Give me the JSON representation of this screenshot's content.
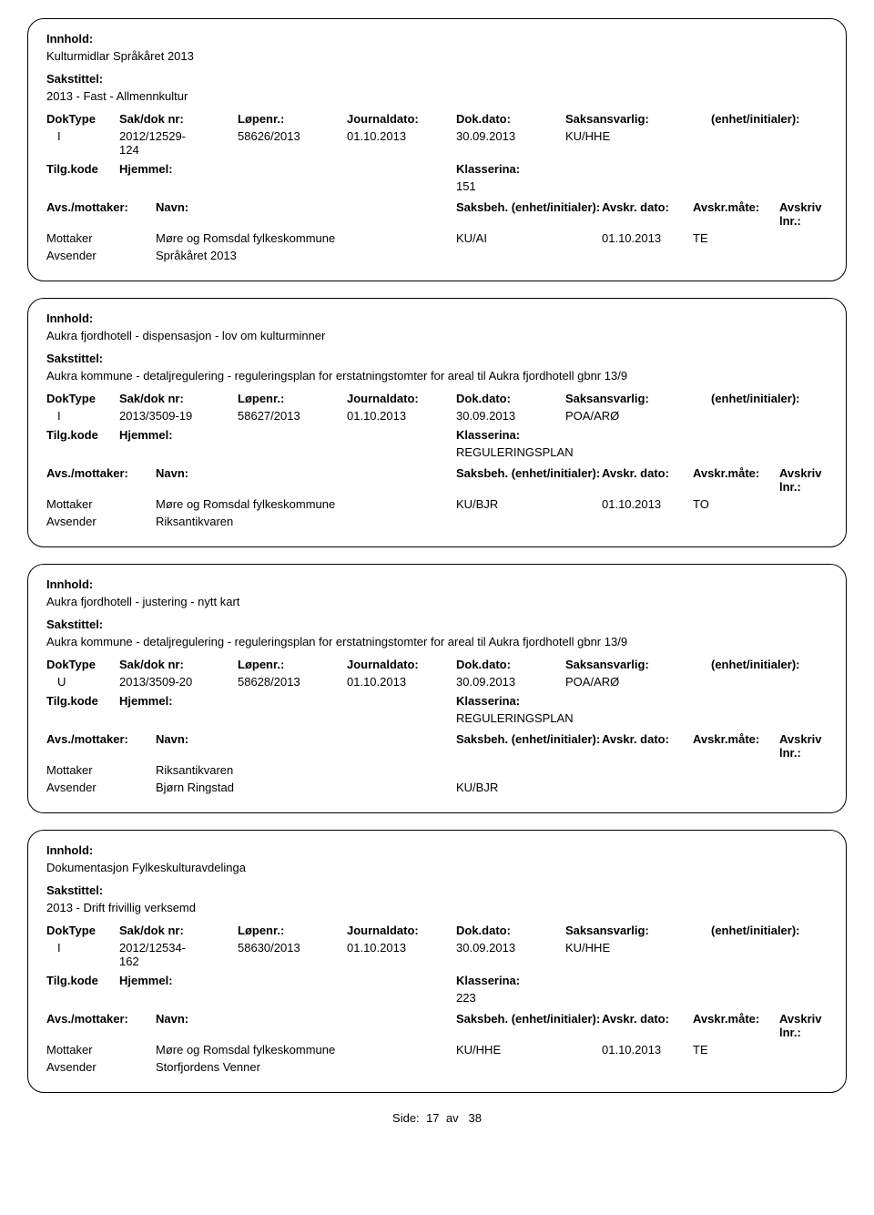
{
  "labels": {
    "innhold": "Innhold:",
    "sakstittel": "Sakstittel:",
    "doktype": "DokType",
    "sakdok": "Sak/dok nr:",
    "lopenr": "Løpenr.:",
    "journaldato": "Journaldato:",
    "dokdato": "Dok.dato:",
    "saksansvarlig": "Saksansvarlig:",
    "enhet": "(enhet/initialer):",
    "tilgkode": "Tilg.kode",
    "hjemmel": "Hjemmel:",
    "klassering": "Klasserina:",
    "avsmot": "Avs./mottaker:",
    "navn": "Navn:",
    "saksbeh": "Saksbeh.",
    "saksbeh_enhet": "(enhet/initialer):",
    "avskrdato": "Avskr. dato:",
    "avskrmaate": "Avskr.måte:",
    "avskrivlnr": "Avskriv lnr.:",
    "mottaker": "Mottaker",
    "avsender": "Avsender"
  },
  "records": [
    {
      "innhold": "Kulturmidlar Språkåret 2013",
      "sakstittel": "2013 - Fast - Allmennkultur",
      "doktype": "I",
      "sakdok": "2012/12529-124",
      "lopenr": "58626/2013",
      "journaldato": "01.10.2013",
      "dokdato": "30.09.2013",
      "saksansvarlig": "KU/HHE",
      "klassering": "151",
      "parties": [
        {
          "role": "Mottaker",
          "navn": "Møre og Romsdal fylkeskommune",
          "saksbeh": "KU/AI",
          "avskrdato": "01.10.2013",
          "avskrmaate": "TE"
        },
        {
          "role": "Avsender",
          "navn": "Språkåret 2013",
          "saksbeh": "",
          "avskrdato": "",
          "avskrmaate": ""
        }
      ]
    },
    {
      "innhold": "Aukra fjordhotell - dispensasjon - lov om kulturminner",
      "sakstittel": "Aukra kommune - detaljregulering - reguleringsplan for erstatningstomter for areal til Aukra fjordhotell gbnr 13/9",
      "doktype": "I",
      "sakdok": "2013/3509-19",
      "lopenr": "58627/2013",
      "journaldato": "01.10.2013",
      "dokdato": "30.09.2013",
      "saksansvarlig": "POA/ARØ",
      "klassering": "REGULERINGSPLAN",
      "parties": [
        {
          "role": "Mottaker",
          "navn": "Møre og Romsdal fylkeskommune",
          "saksbeh": "KU/BJR",
          "avskrdato": "01.10.2013",
          "avskrmaate": "TO"
        },
        {
          "role": "Avsender",
          "navn": "Riksantikvaren",
          "saksbeh": "",
          "avskrdato": "",
          "avskrmaate": ""
        }
      ]
    },
    {
      "innhold": "Aukra fjordhotell - justering - nytt kart",
      "sakstittel": "Aukra kommune - detaljregulering - reguleringsplan for erstatningstomter for areal til Aukra fjordhotell gbnr 13/9",
      "doktype": "U",
      "sakdok": "2013/3509-20",
      "lopenr": "58628/2013",
      "journaldato": "01.10.2013",
      "dokdato": "30.09.2013",
      "saksansvarlig": "POA/ARØ",
      "klassering": "REGULERINGSPLAN",
      "party_header_full": true,
      "parties": [
        {
          "role": "Mottaker",
          "navn": "Riksantikvaren",
          "saksbeh": "",
          "avskrdato": "",
          "avskrmaate": ""
        },
        {
          "role": "Avsender",
          "navn": "Bjørn Ringstad",
          "saksbeh": "KU/BJR",
          "avskrdato": "",
          "avskrmaate": ""
        }
      ]
    },
    {
      "innhold": "Dokumentasjon Fylkeskulturavdelinga",
      "sakstittel": "2013 - Drift frivillig verksemd",
      "doktype": "I",
      "sakdok": "2012/12534-162",
      "lopenr": "58630/2013",
      "journaldato": "01.10.2013",
      "dokdato": "30.09.2013",
      "saksansvarlig": "KU/HHE",
      "klassering": "223",
      "party_header_full": true,
      "parties": [
        {
          "role": "Mottaker",
          "navn": "Møre og Romsdal fylkeskommune",
          "saksbeh": "KU/HHE",
          "avskrdato": "01.10.2013",
          "avskrmaate": "TE"
        },
        {
          "role": "Avsender",
          "navn": "Storfjordens Venner",
          "saksbeh": "",
          "avskrdato": "",
          "avskrmaate": ""
        }
      ]
    }
  ],
  "footer": {
    "side": "Side:",
    "page": "17",
    "av": "av",
    "total": "38"
  }
}
